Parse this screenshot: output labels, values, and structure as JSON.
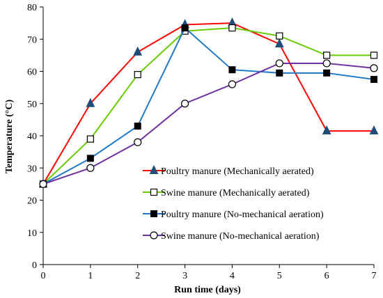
{
  "chart_data": {
    "type": "line",
    "xlabel": "Run time  (days)",
    "ylabel": "Temperature  (°C)",
    "xlim": [
      0,
      7
    ],
    "ylim": [
      0,
      80
    ],
    "x_ticks": [
      "0",
      "1",
      "2",
      "3",
      "4",
      "5",
      "6",
      "7"
    ],
    "y_ticks": [
      "0",
      "10",
      "20",
      "30",
      "40",
      "50",
      "60",
      "70",
      "80"
    ],
    "grid": false,
    "legend_position": "center-right",
    "series": [
      {
        "name": "Poultry manure (Mechanically aerated)",
        "color": "#ff0000",
        "marker": "filled-triangle",
        "marker_color": "#1f4e79",
        "x": [
          0,
          1,
          2,
          3,
          4,
          5,
          6,
          7
        ],
        "values": [
          25,
          50,
          66,
          74.5,
          75,
          68.5,
          41.5,
          41.5
        ]
      },
      {
        "name": "Swine manure (Mechanically aerated)",
        "color": "#66cc00",
        "marker": "open-square",
        "marker_color": "#000000",
        "x": [
          0,
          1,
          2,
          3,
          4,
          5,
          6,
          7
        ],
        "values": [
          25,
          39,
          59,
          72.5,
          73.5,
          71,
          65,
          65
        ]
      },
      {
        "name": "Poultry manure (No-mechanical aeration)",
        "color": "#1f78c8",
        "marker": "filled-square",
        "marker_color": "#000000",
        "x": [
          0,
          1,
          2,
          3,
          4,
          5,
          6,
          7
        ],
        "values": [
          25,
          33,
          43,
          73.5,
          60.5,
          59.5,
          59.5,
          57.5
        ]
      },
      {
        "name": "Swine manure (No-mechanical aeration)",
        "color": "#7030a0",
        "marker": "open-circle",
        "marker_color": "#000000",
        "x": [
          0,
          1,
          2,
          3,
          4,
          5,
          6,
          7
        ],
        "values": [
          25,
          30,
          38,
          50,
          56,
          62.5,
          62.5,
          61
        ]
      }
    ]
  }
}
